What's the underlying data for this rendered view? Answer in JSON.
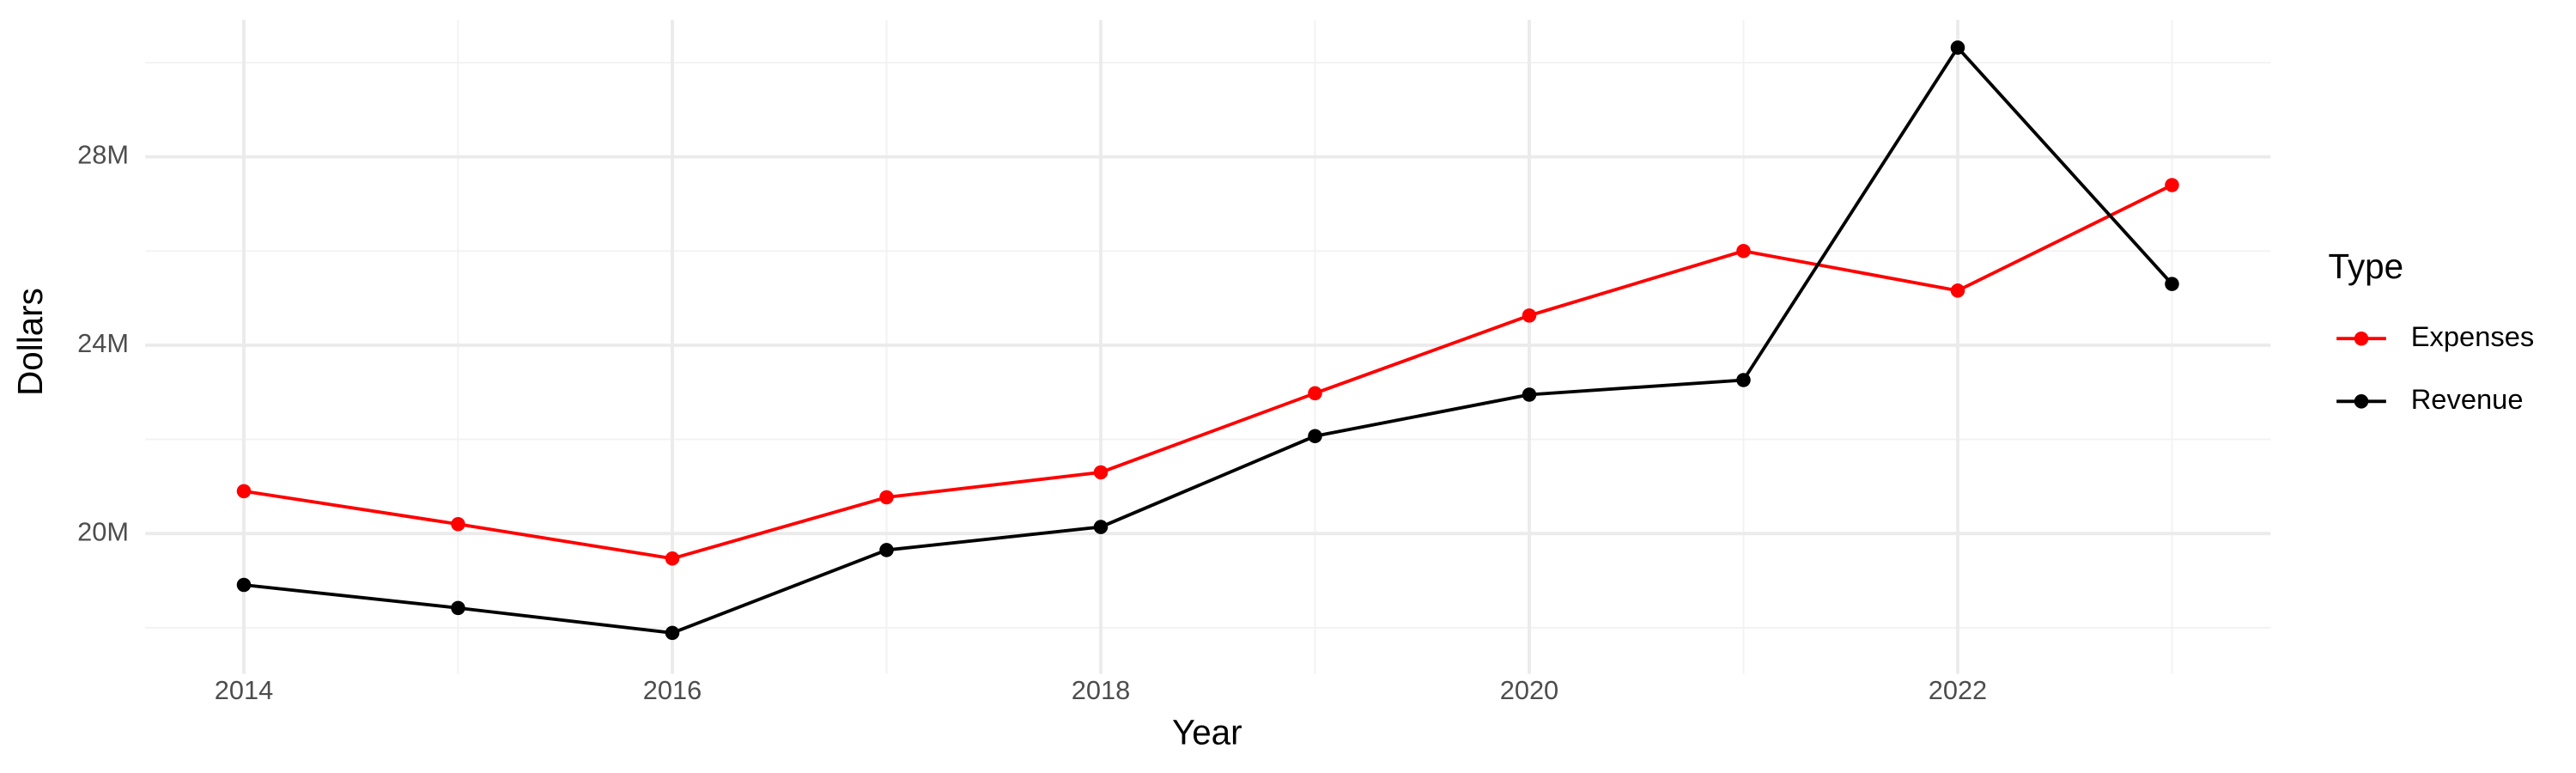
{
  "chart_data": {
    "type": "line",
    "x_label": "Year",
    "y_label": "Dollars",
    "legend_title": "Type",
    "x": [
      2014,
      2015,
      2016,
      2017,
      2018,
      2019,
      2020,
      2021,
      2022,
      2023
    ],
    "series": [
      {
        "name": "Expenses",
        "color": "#ff0000",
        "values": [
          20900000,
          20200000,
          19470000,
          20770000,
          21300000,
          22980000,
          24630000,
          26000000,
          25160000,
          27400000
        ]
      },
      {
        "name": "Revenue",
        "color": "#000000",
        "values": [
          18910000,
          18420000,
          17890000,
          19650000,
          20140000,
          22070000,
          22950000,
          23260000,
          30320000,
          25300000
        ]
      }
    ],
    "xlim": [
      2013.54,
      2023.46
    ],
    "xticks": [
      2014,
      2016,
      2018,
      2020,
      2022
    ],
    "ylim": [
      17020000,
      30910000
    ],
    "yticks": [
      {
        "value": 20000000,
        "label": "20M"
      },
      {
        "value": 24000000,
        "label": "24M"
      },
      {
        "value": 28000000,
        "label": "28M"
      }
    ],
    "grid": true,
    "legend": "right"
  }
}
